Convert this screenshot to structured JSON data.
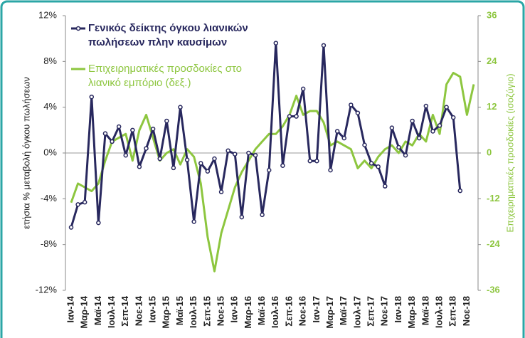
{
  "chart_data": {
    "type": "line",
    "legend_position": "upper left",
    "ylabel": "ετήσια % μεταβολή όγκου πωλήσεων",
    "y2label": "Επιχειρηματικές προσδοκίες (ισοζύγιο)",
    "categories": [
      "Ιαν-14",
      null,
      "Μαρ-14",
      null,
      "Μαϊ-14",
      null,
      "Ιουλ-14",
      null,
      "Σεπ-14",
      null,
      "Νοε-14",
      null,
      "Ιαν-15",
      null,
      "Μαρ-15",
      null,
      "Μαϊ-15",
      null,
      "Ιουλ-15",
      null,
      "Σεπ-15",
      null,
      "Νοε-15",
      null,
      "Ιαν-16",
      null,
      "Μαρ-16",
      null,
      "Μαϊ-16",
      null,
      "Ιουλ-16",
      null,
      "Σεπ-16",
      null,
      "Νοε-16",
      null,
      "Ιαν-17",
      null,
      "Μαρ-17",
      null,
      "Μαϊ-17",
      null,
      "Ιουλ-17",
      null,
      "Σεπ-17",
      null,
      "Νοε-17",
      null,
      "Ιαν-18",
      null,
      "Μαρ-18",
      null,
      "Μαϊ-18",
      null,
      "Ιουλ-18",
      null,
      "Σεπ-18",
      null,
      "Νοε-18",
      null
    ],
    "ylim": [
      -12,
      12
    ],
    "yticks": [
      {
        "value": 12,
        "label": "12%"
      },
      {
        "value": 8,
        "label": "8%"
      },
      {
        "value": 4,
        "label": "4%"
      },
      {
        "value": 0,
        "label": "0%"
      },
      {
        "value": -4,
        "label": "-4%"
      },
      {
        "value": -8,
        "label": "-8%"
      },
      {
        "value": -12,
        "label": "-12%"
      }
    ],
    "y2lim": [
      -36,
      36
    ],
    "y2ticks": [
      36,
      24,
      12,
      0,
      -12,
      -24,
      -36
    ],
    "series": [
      {
        "name": "Γενικός δείκτης όγκου λιανικών πωλήσεων πλην καυσίμων",
        "color": "#28285e",
        "markers": true,
        "values": [
          -6.5,
          -4.5,
          -4.3,
          4.9,
          -6.1,
          1.7,
          1.0,
          2.3,
          -0.2,
          2.0,
          -1.2,
          0.4,
          2.1,
          -0.5,
          2.8,
          -1.3,
          4.0,
          -0.6,
          -6.0,
          -0.9,
          -1.6,
          -0.5,
          -3.4,
          0.2,
          -0.1,
          -5.6,
          0.0,
          -0.2,
          -5.4,
          -1.5,
          9.6,
          -1.1,
          3.2,
          3.2,
          5.6,
          -0.7,
          -0.7,
          9.4,
          -1.5,
          1.9,
          1.3,
          4.2,
          3.5,
          0.7,
          -0.9,
          -1.2,
          -2.9,
          2.2,
          0.5,
          -0.2,
          2.8,
          1.3,
          4.1,
          1.9,
          2.4,
          4.0,
          3.1,
          -3.3,
          null,
          null
        ]
      },
      {
        "name": "Επιχειρηματικές προσδοκίες στο λιανικό εμπόριο (δεξ.)",
        "color": "#8dc63f",
        "axis": "y2",
        "markers": false,
        "values": [
          -13,
          -8,
          -9,
          -10,
          -8,
          -2,
          3,
          4,
          5,
          -2,
          6,
          10,
          4,
          -2,
          0,
          1,
          -3,
          1,
          -1,
          -8,
          -22,
          -31,
          -21,
          -15,
          -9,
          -5,
          -2,
          1,
          3,
          5,
          5,
          7,
          10,
          15,
          10,
          11,
          11,
          8,
          2,
          3,
          2,
          1,
          -4,
          -2,
          -4,
          -1,
          1,
          2,
          0,
          3,
          2,
          5,
          3,
          10,
          5,
          18,
          21,
          20,
          10,
          18
        ]
      }
    ]
  }
}
